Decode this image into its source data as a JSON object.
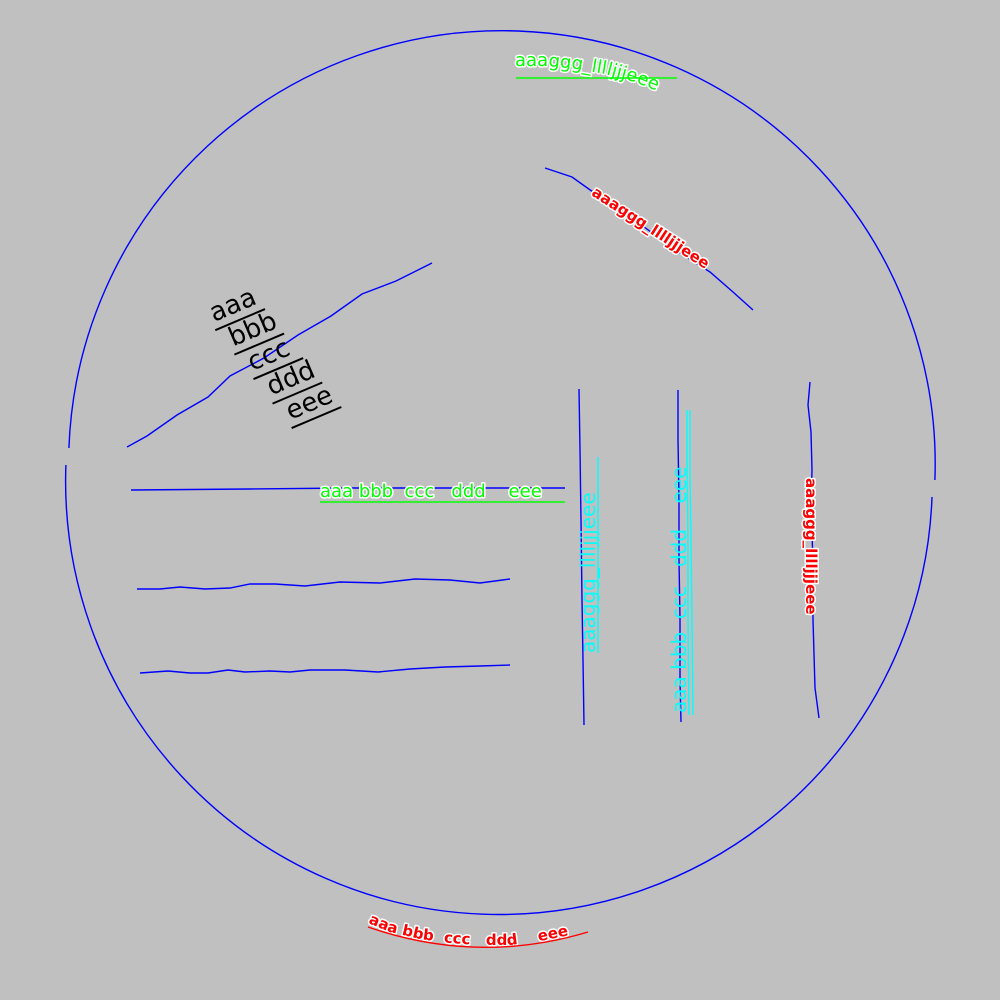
{
  "colors": {
    "background": "#c0c0c0",
    "line": "#0000ff",
    "green": "#00ff00",
    "red": "#ff0000",
    "cyan": "#00ffff",
    "black": "#000000",
    "halo": "#ffffff"
  },
  "labels": {
    "top_arc": "aaaggg_lllljjjeee",
    "diagonal_red": "aaaggg_lllljjjeee",
    "stacked": [
      "aaa",
      "bbb",
      "ccc",
      "ddd",
      "eee"
    ],
    "horizontal_green": "aaa bbb  ccc   ddd    eee",
    "vertical_cyan_single": "aaaggg_lllljjjeee",
    "vertical_cyan_multi": "aaa bbb  ccc   ddd    eee",
    "vertical_red": "aaaggg_lllljjjeee",
    "bottom_arc": "aaa bbb  ccc   ddd    eee"
  }
}
